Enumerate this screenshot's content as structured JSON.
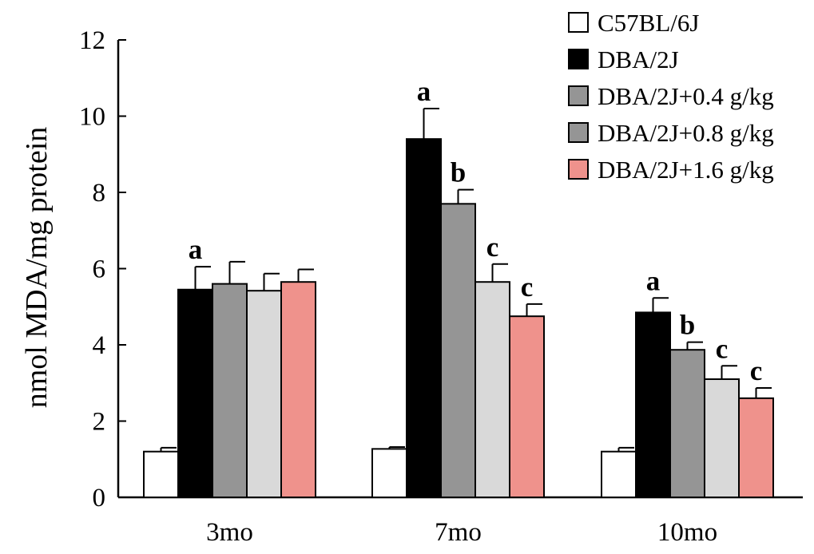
{
  "chart_data": {
    "type": "bar",
    "title": "",
    "xlabel": "",
    "ylabel": "nmol MDA/mg protein",
    "ylim": [
      0,
      12
    ],
    "yticks": [
      "0",
      "2",
      "4",
      "6",
      "8",
      "10",
      "12"
    ],
    "categories": [
      "3mo",
      "7mo",
      "10mo"
    ],
    "grid": false,
    "legend_position": "top-right",
    "series": [
      {
        "name": "C57BL/6J",
        "color": "#ffffff",
        "values": [
          1.2,
          1.27,
          1.2
        ],
        "errors": [
          0.1,
          0.05,
          0.1
        ],
        "labels": [
          "",
          "",
          ""
        ]
      },
      {
        "name": "DBA/2J",
        "color": "#000000",
        "values": [
          5.45,
          9.4,
          4.85
        ],
        "errors": [
          0.6,
          0.8,
          0.38
        ],
        "labels": [
          "a",
          "a",
          "a"
        ]
      },
      {
        "name": "DBA/2J+0.4 g/kg",
        "color": "#959595",
        "values": [
          5.6,
          7.7,
          3.87
        ],
        "errors": [
          0.58,
          0.37,
          0.2
        ],
        "labels": [
          "",
          "b",
          "b"
        ]
      },
      {
        "name": "DBA/2J+0.8 g/kg",
        "color": "#d9d9d9",
        "legend_color": "#959595",
        "values": [
          5.42,
          5.65,
          3.1
        ],
        "errors": [
          0.45,
          0.47,
          0.35
        ],
        "labels": [
          "",
          "c",
          "c"
        ]
      },
      {
        "name": "DBA/2J+1.6 g/kg",
        "color": "#ef928c",
        "values": [
          5.65,
          4.75,
          2.6
        ],
        "errors": [
          0.33,
          0.32,
          0.27
        ],
        "labels": [
          "",
          "c",
          "c"
        ]
      }
    ]
  }
}
